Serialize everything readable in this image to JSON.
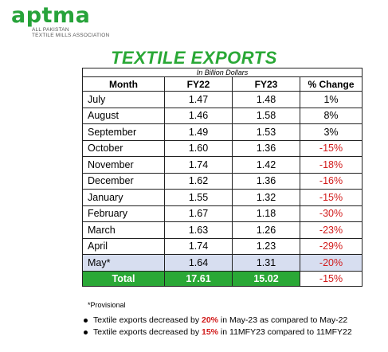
{
  "logo": {
    "name": "aptma",
    "subtitle_line1": "ALL PAKISTAN",
    "subtitle_line2": "TEXTILE MILLS ASSOCIATION"
  },
  "title": "TEXTILE EXPORTS",
  "unit": "In Billion Dollars",
  "headers": [
    "Month",
    "FY22",
    "FY23",
    "% Change"
  ],
  "rows": [
    {
      "month": "July",
      "fy22": "1.47",
      "fy23": "1.48",
      "change": "1%"
    },
    {
      "month": "August",
      "fy22": "1.46",
      "fy23": "1.58",
      "change": "8%"
    },
    {
      "month": "September",
      "fy22": "1.49",
      "fy23": "1.53",
      "change": "3%"
    },
    {
      "month": "October",
      "fy22": "1.60",
      "fy23": "1.36",
      "change": "-15%"
    },
    {
      "month": "November",
      "fy22": "1.74",
      "fy23": "1.42",
      "change": "-18%"
    },
    {
      "month": "December",
      "fy22": "1.62",
      "fy23": "1.36",
      "change": "-16%"
    },
    {
      "month": "January",
      "fy22": "1.55",
      "fy23": "1.32",
      "change": "-15%"
    },
    {
      "month": "February",
      "fy22": "1.67",
      "fy23": "1.18",
      "change": "-30%"
    },
    {
      "month": "March",
      "fy22": "1.63",
      "fy23": "1.26",
      "change": "-23%"
    },
    {
      "month": "April",
      "fy22": "1.74",
      "fy23": "1.23",
      "change": "-29%"
    },
    {
      "month": "May*",
      "fy22": "1.64",
      "fy23": "1.31",
      "change": "-20%"
    }
  ],
  "total": {
    "label": "Total",
    "fy22": "17.61",
    "fy23": "15.02",
    "change": "-15%"
  },
  "footnote": "*Provisional",
  "bullets": [
    {
      "pre": "Textile exports decreased by ",
      "highlight": "20%",
      "post": " in May-23 as compared to May-22"
    },
    {
      "pre": "Textile exports decreased by ",
      "highlight": "15%",
      "post": " in 11MFY23 compared to 11MFY22"
    }
  ],
  "colors": {
    "brand_green": "#2aa836",
    "negative_red": "#d11a1a",
    "provisional_row": "#d7def0"
  }
}
